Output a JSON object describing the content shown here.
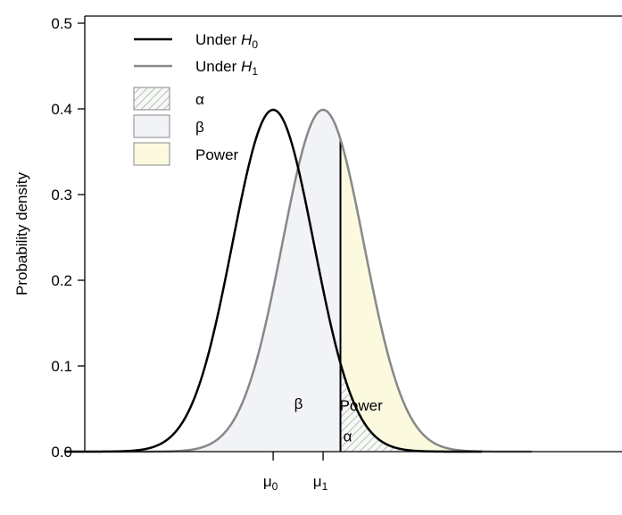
{
  "chart_data": {
    "type": "area",
    "title": "",
    "xlabel": "",
    "ylabel": "Probability density",
    "xlim": [
      -4.3,
      8.2
    ],
    "ylim": [
      0,
      0.52
    ],
    "yticks": [
      {
        "value": 0.0,
        "label": "0.0"
      },
      {
        "value": 0.1,
        "label": "0.1"
      },
      {
        "value": 0.2,
        "label": "0.2"
      },
      {
        "value": 0.3,
        "label": "0.3"
      },
      {
        "value": 0.4,
        "label": "0.4"
      },
      {
        "value": 0.5,
        "label": "0.5"
      }
    ],
    "xticks": [
      {
        "value": 0,
        "label": "μ",
        "sub": "0"
      },
      {
        "value": 1.22,
        "label": "μ",
        "sub": "1"
      }
    ],
    "series": [
      {
        "name": "Under H0",
        "legend_label": "Under ",
        "legend_math": "H",
        "legend_sub": "0",
        "mean": 0,
        "sd": 1,
        "color": "#000000"
      },
      {
        "name": "Under H1",
        "legend_label": "Under ",
        "legend_math": "H",
        "legend_sub": "1",
        "mean": 1.22,
        "sd": 1,
        "color": "#888888"
      }
    ],
    "critical_value": 1.645,
    "shaded_regions": [
      {
        "name": "α",
        "legend_label": "α",
        "fill": "hatched",
        "color": "#c9d0c9",
        "region_label": "α",
        "label_x": 1.82,
        "label_y": 0.012
      },
      {
        "name": "β",
        "legend_label": "β",
        "fill": "solid",
        "color": "#f1f3f6",
        "region_label": "β",
        "label_x": 0.62,
        "label_y": 0.05
      },
      {
        "name": "Power",
        "legend_label": "Power",
        "fill": "solid",
        "color": "#fbfadf",
        "region_label": "Power",
        "label_x": 2.15,
        "label_y": 0.048
      }
    ],
    "legend_position": "top-left",
    "grid": false
  }
}
